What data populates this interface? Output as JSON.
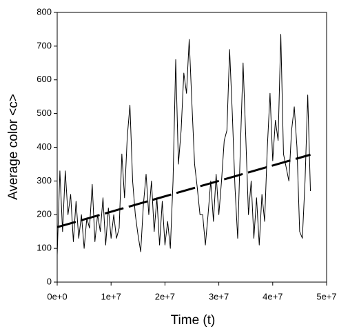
{
  "chart_data": {
    "type": "line",
    "xlabel": "Time (t)",
    "ylabel": "Average color <c>",
    "xlim": [
      0,
      50000000
    ],
    "xticks": [
      {
        "value": 0,
        "label": "0e+0"
      },
      {
        "value": 10000000,
        "label": "1e+7"
      },
      {
        "value": 20000000,
        "label": "2e+7"
      },
      {
        "value": 30000000,
        "label": "3e+7"
      },
      {
        "value": 40000000,
        "label": "4e+7"
      },
      {
        "value": 50000000,
        "label": "5e+7"
      }
    ],
    "ylim": [
      0,
      800
    ],
    "yticks": [
      0,
      100,
      200,
      300,
      400,
      500,
      600,
      700,
      800
    ],
    "series": [
      {
        "color": "#000000",
        "dashed": false,
        "x": [
          0,
          500000,
          1000000,
          1500000,
          2000000,
          2500000,
          3000000,
          3500000,
          4000000,
          4500000,
          5000000,
          5500000,
          6000000,
          6500000,
          7000000,
          7500000,
          8000000,
          8500000,
          9000000,
          9500000,
          10000000,
          10500000,
          11000000,
          11500000,
          12000000,
          12500000,
          13000000,
          13500000,
          14000000,
          14500000,
          15000000,
          15500000,
          16000000,
          16500000,
          17000000,
          17500000,
          18000000,
          18500000,
          19000000,
          19500000,
          20000000,
          20500000,
          21000000,
          21500000,
          22000000,
          22500000,
          23000000,
          23500000,
          24000000,
          24500000,
          25000000,
          25500000,
          26000000,
          26500000,
          27000000,
          27500000,
          28000000,
          28500000,
          29000000,
          29500000,
          30000000,
          30500000,
          31000000,
          31500000,
          32000000,
          32500000,
          33000000,
          33500000,
          34000000,
          34500000,
          35000000,
          35500000,
          36000000,
          36500000,
          37000000,
          37500000,
          38000000,
          38500000,
          39000000,
          39500000,
          40000000,
          40500000,
          41000000,
          41500000,
          42000000,
          42500000,
          43000000,
          43500000,
          44000000,
          44500000,
          45000000,
          45500000,
          46000000,
          46500000,
          47000000
        ],
        "values": [
          80,
          330,
          150,
          330,
          200,
          260,
          120,
          240,
          130,
          200,
          100,
          190,
          160,
          290,
          120,
          200,
          150,
          250,
          110,
          220,
          130,
          200,
          130,
          160,
          380,
          250,
          430,
          525,
          300,
          200,
          140,
          90,
          230,
          320,
          200,
          300,
          150,
          250,
          110,
          240,
          110,
          180,
          100,
          300,
          660,
          350,
          450,
          620,
          560,
          720,
          530,
          350,
          280,
          200,
          200,
          110,
          200,
          300,
          180,
          320,
          200,
          300,
          420,
          450,
          690,
          500,
          280,
          130,
          400,
          650,
          430,
          200,
          300,
          130,
          250,
          110,
          260,
          180,
          400,
          560,
          360,
          480,
          420,
          735,
          380,
          340,
          300,
          450,
          520,
          400,
          150,
          130,
          300,
          555,
          270
        ]
      },
      {
        "color": "#000000",
        "dashed": true,
        "x": [
          0,
          47000000
        ],
        "values": [
          163,
          378
        ]
      }
    ]
  }
}
